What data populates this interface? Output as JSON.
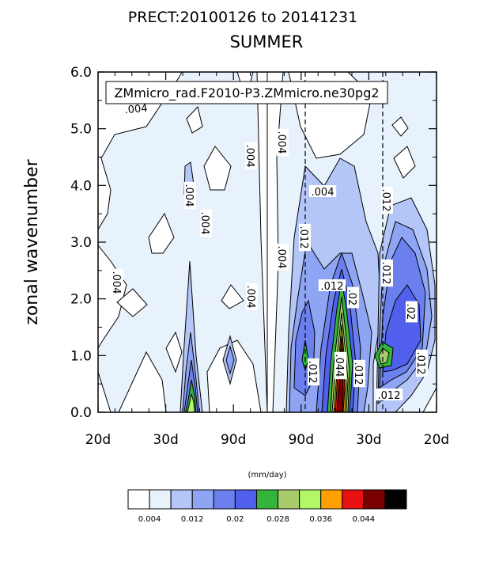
{
  "chart_data": {
    "type": "contour",
    "title": "PRECT:20100126 to 20141231",
    "subtitle": "SUMMER",
    "case_label": "ZMmicro_rad.F2010-P3.ZMmicro.ne30pg2",
    "ylabel": "zonal wavenumber",
    "ylim": [
      0.0,
      6.0
    ],
    "y_ticks": [
      "0.0",
      "1.0",
      "2.0",
      "3.0",
      "4.0",
      "5.0",
      "6.0"
    ],
    "x_ticks": [
      "20d",
      "30d",
      "90d",
      "90d",
      "30d",
      "20d"
    ],
    "colorbar": {
      "units": "(mm/day)",
      "colors": [
        "#ffffff",
        "#e8f2fc",
        "#b4c6f8",
        "#8ea5f3",
        "#6b7fee",
        "#5060ec",
        "#34b43a",
        "#a8cc6c",
        "#b2f766",
        "#ffa000",
        "#e81010",
        "#7a0000",
        "#000000"
      ],
      "labels": [
        "0.004",
        "0.012",
        "0.02",
        "0.028",
        "0.036",
        "0.044"
      ]
    },
    "contour_labels": [
      ".004",
      ".004",
      ".004",
      ".004",
      ".004",
      ".004",
      ".004",
      ".004",
      ".004",
      ".012",
      ".012",
      ".012",
      ".012",
      ".012",
      ".012",
      ".012",
      ".012",
      ".02",
      ".02",
      ".044"
    ]
  }
}
